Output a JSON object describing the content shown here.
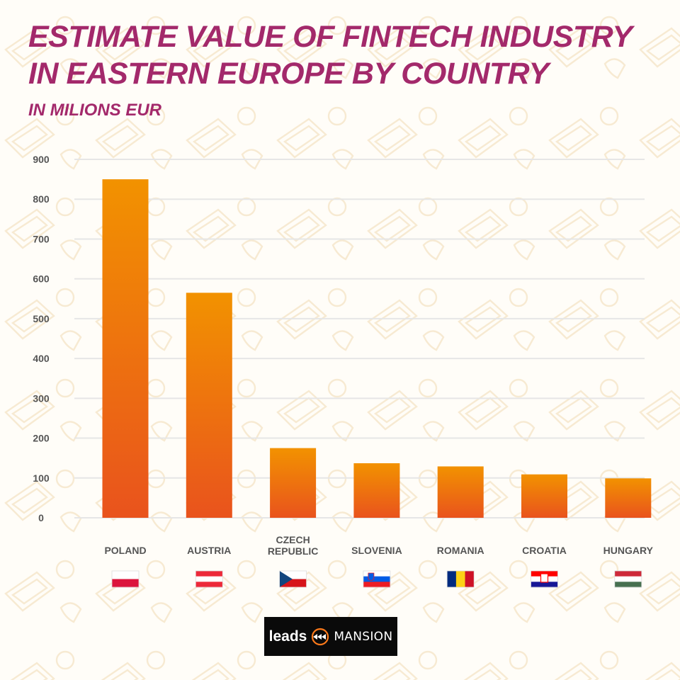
{
  "header": {
    "title": "ESTIMATE VALUE OF FINTECH INDUSTRY IN EASTERN EUROPE BY COUNTRY",
    "subtitle": "IN MILIONS EUR"
  },
  "brand": {
    "logo_leads": "leads",
    "logo_mansion": "MANSION",
    "logo_icon": "fast-forward-arrows-icon"
  },
  "colors": {
    "title": "#a3296b",
    "bar_top": "#f29200",
    "bar_bottom": "#e9531d",
    "grid": "#e6e6e6",
    "axis_text": "#555555"
  },
  "chart_data": {
    "type": "bar",
    "title": "ESTIMATE VALUE OF FINTECH INDUSTRY IN EASTERN EUROPE BY COUNTRY",
    "subtitle": "IN MILIONS EUR",
    "categories": [
      "POLAND",
      "AUSTRIA",
      "CZECH REPUBLIC",
      "SLOVENIA",
      "ROMANIA",
      "CROATIA",
      "HUNGARY"
    ],
    "category_lines": [
      [
        "POLAND"
      ],
      [
        "AUSTRIA"
      ],
      [
        "CZECH",
        "REPUBLIC"
      ],
      [
        "SLOVENIA"
      ],
      [
        "ROMANIA"
      ],
      [
        "CROATIA"
      ],
      [
        "HUNGARY"
      ]
    ],
    "values": [
      850,
      565,
      175,
      137,
      129,
      109,
      99
    ],
    "yticks": [
      0,
      100,
      200,
      300,
      400,
      500,
      600,
      700,
      800,
      900
    ],
    "ylim": [
      0,
      900
    ],
    "grid": true,
    "legend": "none",
    "flags": [
      {
        "country": "POLAND",
        "icon": "poland-flag-icon",
        "layout": "h",
        "colors": [
          "#ffffff",
          "#dc143c"
        ]
      },
      {
        "country": "AUSTRIA",
        "icon": "austria-flag-icon",
        "layout": "h",
        "colors": [
          "#ed2939",
          "#ffffff",
          "#ed2939"
        ]
      },
      {
        "country": "CZECH REPUBLIC",
        "icon": "czech-flag-icon",
        "layout": "czech",
        "colors": [
          "#ffffff",
          "#d7141a",
          "#11457e"
        ]
      },
      {
        "country": "SLOVENIA",
        "icon": "slovenia-flag-icon",
        "layout": "h",
        "colors": [
          "#ffffff",
          "#005ce6",
          "#ed1c24"
        ]
      },
      {
        "country": "ROMANIA",
        "icon": "romania-flag-icon",
        "layout": "v",
        "colors": [
          "#002b7f",
          "#fcd116",
          "#ce1126"
        ]
      },
      {
        "country": "CROATIA",
        "icon": "croatia-flag-icon",
        "layout": "h",
        "colors": [
          "#ff0000",
          "#ffffff",
          "#171796"
        ]
      },
      {
        "country": "HUNGARY",
        "icon": "hungary-flag-icon",
        "layout": "h",
        "colors": [
          "#ce2939",
          "#ffffff",
          "#477050"
        ]
      }
    ]
  }
}
